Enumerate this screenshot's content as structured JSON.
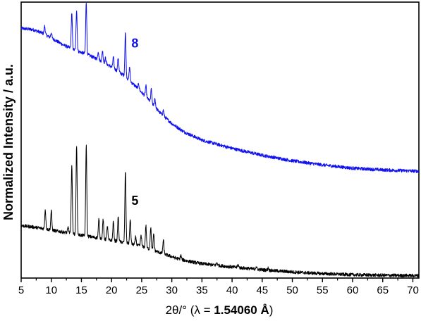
{
  "chart_data": {
    "type": "line",
    "title": "",
    "xlabel_main": "2θ/° (λ = ",
    "xlabel_bold": "1.54060 Å",
    "xlabel_close": ")",
    "ylabel": "Normalized Intensity / a.u.",
    "xlim": [
      5,
      71
    ],
    "xticks": [
      5,
      10,
      15,
      20,
      25,
      30,
      35,
      40,
      45,
      50,
      55,
      60,
      65,
      70
    ],
    "ylim": [
      0,
      1
    ],
    "series": [
      {
        "name": "8",
        "color": "#1111ee",
        "baseline": [
          [
            5,
            0.905
          ],
          [
            7,
            0.9
          ],
          [
            8.5,
            0.888
          ],
          [
            10,
            0.87
          ],
          [
            12,
            0.845
          ],
          [
            14,
            0.825
          ],
          [
            16,
            0.81
          ],
          [
            18,
            0.79
          ],
          [
            20,
            0.765
          ],
          [
            22,
            0.735
          ],
          [
            24,
            0.695
          ],
          [
            26,
            0.65
          ],
          [
            28,
            0.6
          ],
          [
            30,
            0.56
          ],
          [
            32,
            0.53
          ],
          [
            35,
            0.5
          ],
          [
            40,
            0.47
          ],
          [
            45,
            0.445
          ],
          [
            50,
            0.425
          ],
          [
            55,
            0.41
          ],
          [
            60,
            0.398
          ],
          [
            65,
            0.392
          ],
          [
            70,
            0.388
          ],
          [
            71,
            0.387
          ]
        ],
        "peaks": [
          [
            8.9,
            0.03
          ],
          [
            10.0,
            0.02
          ],
          [
            13.4,
            0.13
          ],
          [
            14.2,
            0.15
          ],
          [
            15.8,
            0.19
          ],
          [
            17.8,
            0.03
          ],
          [
            18.5,
            0.04
          ],
          [
            19.0,
            0.02
          ],
          [
            20.3,
            0.04
          ],
          [
            21.1,
            0.05
          ],
          [
            22.3,
            0.16
          ],
          [
            23.0,
            0.05
          ],
          [
            24.5,
            0.02
          ],
          [
            25.7,
            0.04
          ],
          [
            26.6,
            0.05
          ],
          [
            27.2,
            0.03
          ],
          [
            28.6,
            0.02
          ]
        ]
      },
      {
        "name": "5",
        "color": "#000000",
        "baseline": [
          [
            5,
            0.19
          ],
          [
            7,
            0.185
          ],
          [
            9,
            0.178
          ],
          [
            11,
            0.17
          ],
          [
            13,
            0.163
          ],
          [
            15,
            0.155
          ],
          [
            17,
            0.148
          ],
          [
            19,
            0.14
          ],
          [
            21,
            0.133
          ],
          [
            23,
            0.125
          ],
          [
            25,
            0.115
          ],
          [
            27,
            0.1
          ],
          [
            29,
            0.085
          ],
          [
            31,
            0.07
          ],
          [
            33,
            0.06
          ],
          [
            35,
            0.052
          ],
          [
            40,
            0.04
          ],
          [
            45,
            0.03
          ],
          [
            50,
            0.022
          ],
          [
            55,
            0.016
          ],
          [
            60,
            0.012
          ],
          [
            65,
            0.01
          ],
          [
            70,
            0.009
          ],
          [
            71,
            0.009
          ]
        ],
        "peaks": [
          [
            9.0,
            0.07
          ],
          [
            10.0,
            0.07
          ],
          [
            12.8,
            0.02
          ],
          [
            13.4,
            0.25
          ],
          [
            14.2,
            0.32
          ],
          [
            15.8,
            0.33
          ],
          [
            17.9,
            0.07
          ],
          [
            18.6,
            0.07
          ],
          [
            19.3,
            0.05
          ],
          [
            20.3,
            0.07
          ],
          [
            21.1,
            0.09
          ],
          [
            22.3,
            0.26
          ],
          [
            23.1,
            0.09
          ],
          [
            24.0,
            0.03
          ],
          [
            24.9,
            0.04
          ],
          [
            25.7,
            0.08
          ],
          [
            26.5,
            0.08
          ],
          [
            27.0,
            0.06
          ],
          [
            28.6,
            0.05
          ],
          [
            31.5,
            0.015
          ],
          [
            37.5,
            0.01
          ],
          [
            41.0,
            0.01
          ],
          [
            44.0,
            0.01
          ],
          [
            46.0,
            0.008
          ]
        ]
      }
    ],
    "annotations": [
      {
        "text": "8",
        "x": 23.3,
        "y": 0.835,
        "series": 0
      },
      {
        "text": "5",
        "x": 23.3,
        "y": 0.265,
        "series": 1
      }
    ]
  }
}
